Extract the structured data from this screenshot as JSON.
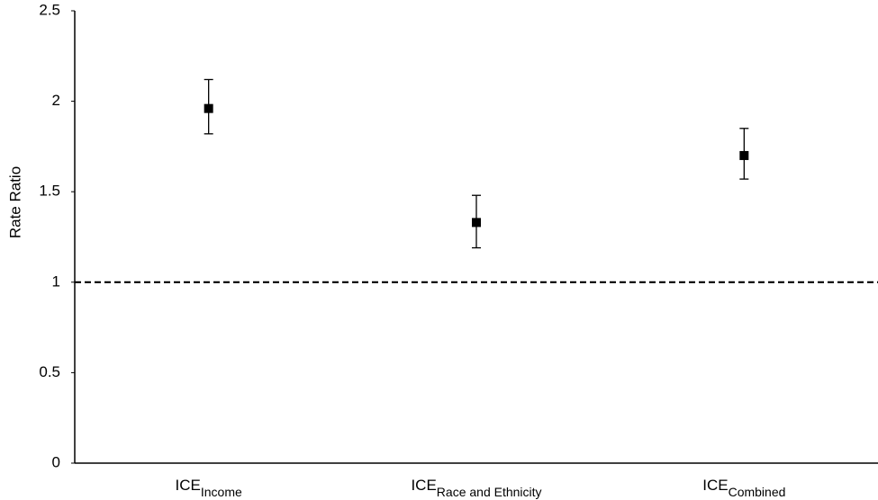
{
  "chart_data": {
    "type": "errorpoint",
    "y_label": "Rate Ratio",
    "categories": [
      {
        "label": "ICE",
        "subscript": "Income"
      },
      {
        "label": "ICE",
        "subscript": "Race and Ethnicity"
      },
      {
        "label": "ICE",
        "subscript": "Combined"
      }
    ],
    "values": [
      1.96,
      1.33,
      1.7
    ],
    "lower": [
      1.82,
      1.19,
      1.57
    ],
    "upper": [
      2.12,
      1.48,
      1.85
    ],
    "color": "#000000",
    "reference_line": 1,
    "ylim": [
      0,
      2.5
    ],
    "yticks": [
      0,
      0.5,
      1,
      1.5,
      2,
      2.5
    ]
  }
}
